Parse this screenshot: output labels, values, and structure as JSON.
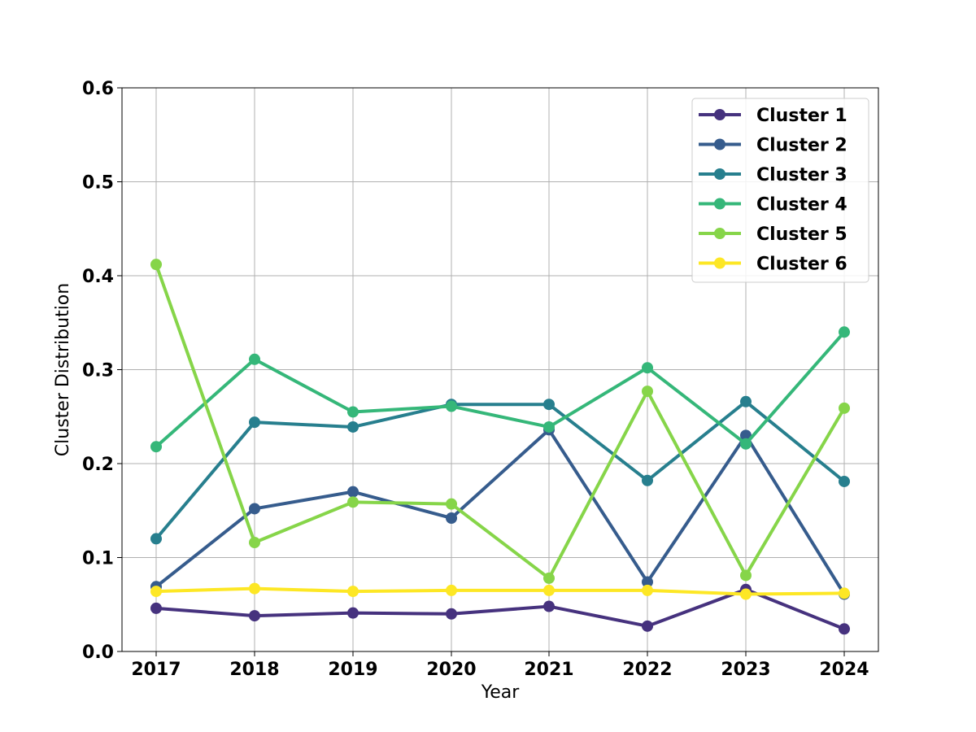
{
  "chart_data": {
    "type": "line",
    "title": "",
    "xlabel": "Year",
    "ylabel": "Cluster Distribution",
    "x": [
      "2017",
      "2018",
      "2019",
      "2020",
      "2021",
      "2022",
      "2023",
      "2024"
    ],
    "x_tick_labels": [
      "2017",
      "2018",
      "2019",
      "2020",
      "2021",
      "2022",
      "2023",
      "2024"
    ],
    "y_tick_labels": [
      "0.0",
      "0.1",
      "0.2",
      "0.3",
      "0.4",
      "0.5",
      "0.6"
    ],
    "ylim": [
      0.0,
      0.6
    ],
    "grid": true,
    "legend_position": "top-right",
    "series": [
      {
        "name": "Cluster 1",
        "color": "#46327e",
        "values": [
          0.046,
          0.038,
          0.041,
          0.04,
          0.048,
          0.027,
          0.066,
          0.024
        ]
      },
      {
        "name": "Cluster 2",
        "color": "#365c8d",
        "values": [
          0.069,
          0.152,
          0.17,
          0.142,
          0.236,
          0.074,
          0.23,
          0.061
        ]
      },
      {
        "name": "Cluster 3",
        "color": "#277f8e",
        "values": [
          0.12,
          0.244,
          0.239,
          0.263,
          0.263,
          0.182,
          0.266,
          0.181
        ]
      },
      {
        "name": "Cluster 4",
        "color": "#35b779",
        "values": [
          0.218,
          0.311,
          0.255,
          0.261,
          0.239,
          0.302,
          0.221,
          0.34
        ]
      },
      {
        "name": "Cluster 5",
        "color": "#86d549",
        "values": [
          0.412,
          0.116,
          0.159,
          0.157,
          0.078,
          0.277,
          0.081,
          0.259
        ]
      },
      {
        "name": "Cluster 6",
        "color": "#fde725",
        "values": [
          0.064,
          0.067,
          0.064,
          0.065,
          0.065,
          0.065,
          0.061,
          0.062
        ]
      }
    ]
  }
}
